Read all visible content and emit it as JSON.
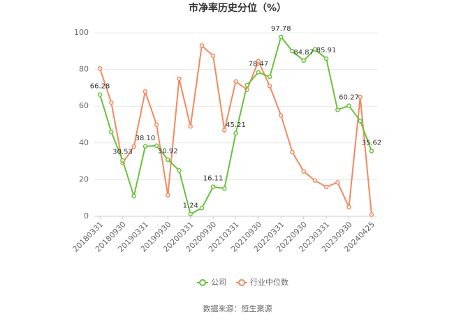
{
  "chart_data": {
    "type": "line",
    "title": "市净率历史分位（%）",
    "categories": [
      "20180331",
      null,
      "20180930",
      null,
      "20190331",
      null,
      "20190930",
      null,
      "20200331",
      null,
      "20200930",
      null,
      "20210331",
      null,
      "20210930",
      null,
      "20220331",
      null,
      "20220930",
      null,
      "20230331",
      null,
      "20230930",
      null,
      "20240425"
    ],
    "series": [
      {
        "name": "公司",
        "color": "#67c23a",
        "values": [
          66.28,
          46,
          30.53,
          11,
          38.1,
          38.5,
          30.92,
          25,
          1.24,
          4.5,
          16.11,
          15.2,
          45.21,
          71.5,
          78.47,
          76,
          97.78,
          90,
          84.87,
          91,
          85.91,
          58,
          60.27,
          52,
          35.62
        ],
        "value_labels": [
          "66.28",
          null,
          "30.53",
          null,
          "38.10",
          null,
          "30.92",
          null,
          "1.24",
          null,
          "16.11",
          null,
          "45.21",
          null,
          "78.47",
          null,
          "97.78",
          null,
          "84.87",
          null,
          "85.91",
          null,
          "60.27",
          null,
          "35.62"
        ]
      },
      {
        "name": "行业中位数",
        "color": "#f4895f",
        "values": [
          80.5,
          62,
          29,
          38,
          68,
          50,
          11.5,
          75,
          49,
          93,
          87.5,
          47,
          73.5,
          69,
          84.5,
          71,
          55,
          35,
          24.5,
          19.5,
          16,
          18.5,
          5,
          65,
          1
        ]
      }
    ],
    "ylim": [
      0,
      100
    ],
    "yticks": [
      0,
      20,
      40,
      60,
      80,
      100
    ],
    "grid": true,
    "source": "数据来源：恒生聚源"
  }
}
